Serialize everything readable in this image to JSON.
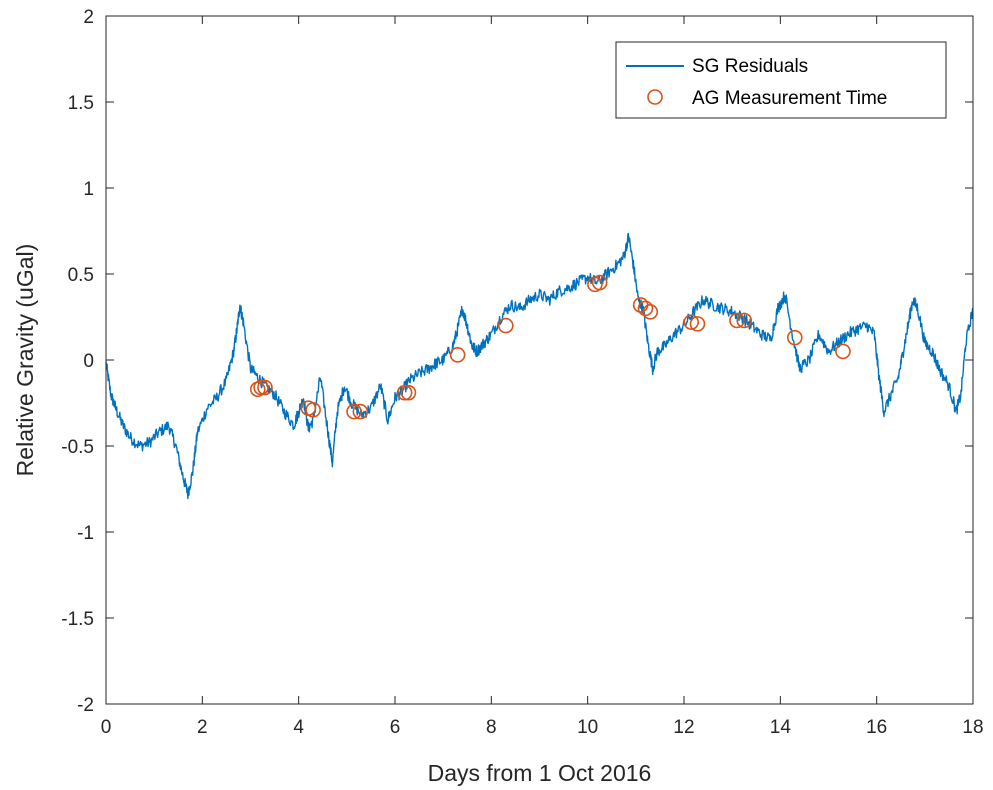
{
  "chart_data": {
    "type": "line",
    "title": "",
    "xlabel": "Days from 1 Oct 2016",
    "ylabel": "Relative Gravity (uGal)",
    "xlim": [
      0,
      18
    ],
    "ylim": [
      -2,
      2
    ],
    "x_ticks": [
      0,
      2,
      4,
      6,
      8,
      10,
      12,
      14,
      16,
      18
    ],
    "y_ticks": [
      -2,
      -1.5,
      -1,
      -0.5,
      0,
      0.5,
      1,
      1.5,
      2
    ],
    "x_tick_labels": [
      "0",
      "2",
      "4",
      "6",
      "8",
      "10",
      "12",
      "14",
      "16",
      "18"
    ],
    "y_tick_labels": [
      "-2",
      "-1.5",
      "-1",
      "-0.5",
      "0",
      "0.5",
      "1",
      "1.5",
      "2"
    ],
    "grid": false,
    "legend_position": "top-right",
    "series": [
      {
        "name": "SG Residuals",
        "kind": "line",
        "color": "#0072BD",
        "x": [
          0,
          0.1,
          0.2,
          0.35,
          0.5,
          0.7,
          0.9,
          1.1,
          1.3,
          1.45,
          1.6,
          1.7,
          1.8,
          1.9,
          2.1,
          2.3,
          2.5,
          2.65,
          2.72,
          2.78,
          2.85,
          3.0,
          3.15,
          3.3,
          3.5,
          3.7,
          3.9,
          4.0,
          4.1,
          4.2,
          4.3,
          4.45,
          4.6,
          4.7,
          4.8,
          4.95,
          5.1,
          5.3,
          5.5,
          5.7,
          5.85,
          6.0,
          6.15,
          6.3,
          6.5,
          6.7,
          6.85,
          7.0,
          7.2,
          7.3,
          7.4,
          7.5,
          7.6,
          7.7,
          7.85,
          8.0,
          8.2,
          8.4,
          8.6,
          8.8,
          9.0,
          9.2,
          9.4,
          9.6,
          9.8,
          10.0,
          10.2,
          10.4,
          10.6,
          10.75,
          10.85,
          10.95,
          11.05,
          11.15,
          11.25,
          11.35,
          11.45,
          11.6,
          11.8,
          12.0,
          12.2,
          12.4,
          12.6,
          12.8,
          13.0,
          13.2,
          13.4,
          13.6,
          13.8,
          13.95,
          14.1,
          14.25,
          14.4,
          14.6,
          14.8,
          15.0,
          15.2,
          15.4,
          15.6,
          15.8,
          15.95,
          16.05,
          16.15,
          16.3,
          16.45,
          16.55,
          16.65,
          16.75,
          16.85,
          17.0,
          17.15,
          17.3,
          17.5,
          17.65,
          17.75,
          17.85,
          18.0
        ],
        "y": [
          -0.02,
          -0.2,
          -0.28,
          -0.38,
          -0.45,
          -0.5,
          -0.48,
          -0.42,
          -0.38,
          -0.5,
          -0.68,
          -0.78,
          -0.65,
          -0.42,
          -0.28,
          -0.22,
          -0.12,
          0.05,
          0.18,
          0.32,
          0.22,
          -0.05,
          -0.1,
          -0.15,
          -0.2,
          -0.3,
          -0.38,
          -0.3,
          -0.22,
          -0.4,
          -0.35,
          -0.1,
          -0.4,
          -0.6,
          -0.3,
          -0.15,
          -0.25,
          -0.32,
          -0.28,
          -0.15,
          -0.35,
          -0.22,
          -0.18,
          -0.12,
          -0.08,
          -0.05,
          -0.02,
          0.0,
          0.08,
          0.18,
          0.3,
          0.2,
          0.08,
          0.05,
          0.1,
          0.15,
          0.25,
          0.32,
          0.3,
          0.35,
          0.38,
          0.35,
          0.4,
          0.42,
          0.45,
          0.48,
          0.45,
          0.5,
          0.55,
          0.6,
          0.72,
          0.55,
          0.35,
          0.3,
          0.1,
          -0.05,
          0.05,
          0.08,
          0.15,
          0.2,
          0.28,
          0.35,
          0.32,
          0.3,
          0.28,
          0.25,
          0.2,
          0.15,
          0.12,
          0.3,
          0.38,
          0.15,
          -0.05,
          0.0,
          0.15,
          0.05,
          0.1,
          0.15,
          0.18,
          0.2,
          0.15,
          -0.1,
          -0.3,
          -0.2,
          -0.1,
          0.05,
          0.2,
          0.35,
          0.3,
          0.1,
          0.05,
          -0.05,
          -0.15,
          -0.3,
          -0.2,
          0.1,
          0.3
        ]
      },
      {
        "name": "AG Measurement Time",
        "kind": "scatter",
        "color": "#D95319",
        "marker": "circle-open",
        "x": [
          3.15,
          3.22,
          3.3,
          4.2,
          4.3,
          5.15,
          5.28,
          6.2,
          6.28,
          7.3,
          8.3,
          10.15,
          10.25,
          11.1,
          11.2,
          11.3,
          12.15,
          12.28,
          13.1,
          13.25,
          14.3,
          15.3
        ],
        "y": [
          -0.17,
          -0.16,
          -0.16,
          -0.28,
          -0.29,
          -0.3,
          -0.3,
          -0.19,
          -0.19,
          0.03,
          0.2,
          0.44,
          0.45,
          0.32,
          0.3,
          0.28,
          0.22,
          0.21,
          0.23,
          0.23,
          0.13,
          0.05
        ]
      }
    ]
  }
}
